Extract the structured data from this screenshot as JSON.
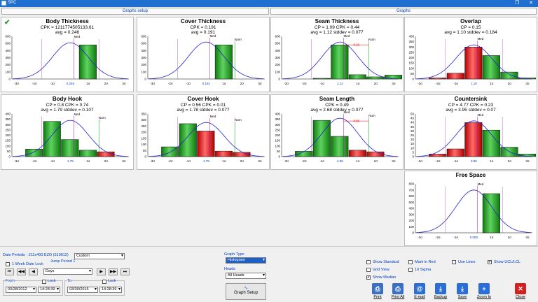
{
  "window": {
    "title": "SPC"
  },
  "tabs": [
    {
      "label": "Graphs setup"
    },
    {
      "label": "Graphs"
    }
  ],
  "charts": [
    {
      "title": "Body Thickness",
      "stats": [
        "CPK = 1211774505133.61",
        "avg = 0.246"
      ],
      "check": true,
      "ymax": 600,
      "yticks": [
        "0",
        "100",
        "200",
        "300",
        "400",
        "500",
        "600"
      ],
      "xticks": [
        "-3σ",
        "-2σ",
        "-1σ",
        "0.246",
        "1σ",
        "2σ",
        "3σ"
      ],
      "bars": [
        {
          "h": 0,
          "c": "none"
        },
        {
          "h": 0,
          "c": "none"
        },
        {
          "h": 0,
          "c": "none"
        },
        {
          "h": 0,
          "c": "none"
        },
        {
          "h": 480,
          "c": "green"
        },
        {
          "h": 0,
          "c": "none"
        },
        {
          "h": 0,
          "c": "none"
        },
        {
          "h": 0,
          "c": "none"
        }
      ],
      "curve_peak": 0,
      "mark": "Med"
    },
    {
      "title": "Cover Thickness",
      "stats": [
        "CPK = 0.191",
        "avg = 0.191"
      ],
      "ymax": 600,
      "yticks": [
        "0",
        "100",
        "200",
        "300",
        "400",
        "500",
        "600"
      ],
      "xticks": [
        "-3σ",
        "-2σ",
        "-1σ",
        "0.191",
        "1σ",
        "2σ",
        "3σ"
      ],
      "bars": [
        {
          "h": 0,
          "c": "none"
        },
        {
          "h": 0,
          "c": "none"
        },
        {
          "h": 0,
          "c": "none"
        },
        {
          "h": 0,
          "c": "none"
        },
        {
          "h": 480,
          "c": "green"
        },
        {
          "h": 0,
          "c": "none"
        },
        {
          "h": 0,
          "c": "none"
        },
        {
          "h": 0,
          "c": "none"
        }
      ],
      "curve_peak": 520,
      "mark": "Med",
      "nom": "Nom"
    },
    {
      "title": "Seam Thickness",
      "stats": [
        "CP = 1.09  CPK = 0.44",
        "avg = 1.12  stddev = 0.077"
      ],
      "ymax": 600,
      "yticks": [
        "0",
        "100",
        "200",
        "300",
        "400",
        "500",
        "600"
      ],
      "xticks": [
        "-3σ",
        "-2σ",
        "-1σ",
        "1.12",
        "1σ",
        "2σ",
        "3σ"
      ],
      "bars": [
        {
          "h": 0,
          "c": "none"
        },
        {
          "h": 0,
          "c": "none"
        },
        {
          "h": 10,
          "c": "green"
        },
        {
          "h": 480,
          "c": "green"
        },
        {
          "h": 60,
          "c": "green"
        },
        {
          "h": 30,
          "c": "green"
        },
        {
          "h": 55,
          "c": "green"
        },
        {
          "h": 0,
          "c": "none"
        }
      ],
      "curve_peak": 520,
      "mark": "Med",
      "nom": "Nom",
      "diff": "0.16"
    },
    {
      "title": "Overlap",
      "stats": [
        "CP = 0.15",
        "avg = 1.10  stddev = 0.184"
      ],
      "ymax": 400,
      "yticks": [
        "0",
        "50",
        "100",
        "150",
        "200",
        "250",
        "300",
        "350",
        "400"
      ],
      "xticks": [
        "-3σ",
        "-2σ",
        "-1σ",
        "1.10",
        "1σ",
        "2σ",
        "3σ"
      ],
      "bars": [
        {
          "h": 0,
          "c": "none"
        },
        {
          "h": 10,
          "c": "red"
        },
        {
          "h": 55,
          "c": "red"
        },
        {
          "h": 300,
          "c": "red"
        },
        {
          "h": 220,
          "c": "green"
        },
        {
          "h": 65,
          "c": "green"
        },
        {
          "h": 10,
          "c": "green"
        },
        {
          "h": 0,
          "c": "none"
        }
      ],
      "curve_peak": 320,
      "mark": "Med"
    },
    {
      "title": "Body Hook",
      "stats": [
        "CP = 0.8  CPK = 0.74",
        "avg = 1.79  stddev = 0.107"
      ],
      "ymax": 400,
      "yticks": [
        "0",
        "50",
        "100",
        "150",
        "200",
        "250",
        "300",
        "350",
        "400"
      ],
      "xticks": [
        "-3σ",
        "-2σ",
        "-1σ",
        "1.79",
        "1σ",
        "2σ",
        "3σ"
      ],
      "bars": [
        {
          "h": 0,
          "c": "none"
        },
        {
          "h": 70,
          "c": "green"
        },
        {
          "h": 330,
          "c": "green"
        },
        {
          "h": 160,
          "c": "green"
        },
        {
          "h": 60,
          "c": "green"
        },
        {
          "h": 45,
          "c": "red"
        },
        {
          "h": 0,
          "c": "none"
        },
        {
          "h": 0,
          "c": "none"
        }
      ],
      "curve_peak": 340,
      "mark": "Med",
      "nom": "Nom"
    },
    {
      "title": "Cover Hook",
      "stats": [
        "CP = 0.56  CPK = 0.01",
        "avg = 1.78  stddev = 0.077"
      ],
      "ymax": 350,
      "yticks": [
        "0",
        "50",
        "100",
        "150",
        "200",
        "250",
        "300",
        "350"
      ],
      "xticks": [
        "-3σ",
        "-2σ",
        "-1σ",
        "1.78",
        "1σ",
        "2σ",
        "3σ"
      ],
      "bars": [
        {
          "h": 0,
          "c": "none"
        },
        {
          "h": 80,
          "c": "green"
        },
        {
          "h": 270,
          "c": "green"
        },
        {
          "h": 210,
          "c": "red"
        },
        {
          "h": 45,
          "c": "red"
        },
        {
          "h": 35,
          "c": "red"
        },
        {
          "h": 0,
          "c": "none"
        },
        {
          "h": 0,
          "c": "none"
        }
      ],
      "curve_peak": 280,
      "mark": "Med",
      "nom": "Nom"
    },
    {
      "title": "Seam Length",
      "stats": [
        "CPK = 0.49",
        "avg = 2.68  stddev = 0.077"
      ],
      "ymax": 400,
      "yticks": [
        "0",
        "50",
        "100",
        "150",
        "200",
        "250",
        "300",
        "350",
        "400"
      ],
      "xticks": [
        "-3σ",
        "-2σ",
        "-1σ",
        "2.68",
        "1σ",
        "2σ",
        "3σ"
      ],
      "bars": [
        {
          "h": 0,
          "c": "none"
        },
        {
          "h": 50,
          "c": "green"
        },
        {
          "h": 340,
          "c": "green"
        },
        {
          "h": 190,
          "c": "green"
        },
        {
          "h": 60,
          "c": "red"
        },
        {
          "h": 45,
          "c": "red"
        },
        {
          "h": 0,
          "c": "none"
        },
        {
          "h": 0,
          "c": "none"
        }
      ],
      "curve_peak": 360,
      "mark": "Med",
      "nom": "Nom",
      "diff": "0.05"
    },
    {
      "title": "Countersink",
      "stats": [
        "CP = 4.77  CPK = 0.23",
        "avg = 3.95  stddev = 0.07"
      ],
      "ymax": 50,
      "yticks": [
        "0",
        "5",
        "10",
        "15",
        "20",
        "25",
        "30",
        "35",
        "40",
        "45",
        "50"
      ],
      "xticks": [
        "-3σ",
        "-2σ",
        "-1σ",
        "3.95",
        "1σ",
        "2σ",
        "3σ"
      ],
      "bars": [
        {
          "h": 0,
          "c": "none"
        },
        {
          "h": 3,
          "c": "red"
        },
        {
          "h": 9,
          "c": "red"
        },
        {
          "h": 40,
          "c": "red"
        },
        {
          "h": 31,
          "c": "green"
        },
        {
          "h": 11,
          "c": "green"
        },
        {
          "h": 3,
          "c": "green"
        },
        {
          "h": 0,
          "c": "none"
        }
      ],
      "curve_peak": 42,
      "mark": "Med"
    },
    {
      "title": "Free Space",
      "stats": [],
      "ymax": 800,
      "yticks": [
        "0",
        "100",
        "200",
        "300",
        "400",
        "500",
        "600",
        "700",
        "800"
      ],
      "xticks": [
        "-3σ",
        "-2σ",
        "-1σ",
        "0.000",
        "1σ",
        "2σ",
        "3σ"
      ],
      "bars": [
        {
          "h": 0,
          "c": "none"
        },
        {
          "h": 0,
          "c": "none"
        },
        {
          "h": 0,
          "c": "none"
        },
        {
          "h": 0,
          "c": "none"
        },
        {
          "h": 640,
          "c": "green"
        },
        {
          "h": 0,
          "c": "none"
        },
        {
          "h": 0,
          "c": "none"
        },
        {
          "h": 0,
          "c": "none"
        }
      ],
      "curve_peak": 700,
      "mark": "Med"
    }
  ],
  "bottom": {
    "date_periods": "Date Periods - 211x400 EZO (519612)",
    "range_select": "Custom",
    "jump_label": "Jump Period 1",
    "week_lock": "1 Week Date Lock",
    "nav_prev_far": "⏮",
    "nav_prev_fast": "◀◀",
    "nav_prev": "◀",
    "nav_next": "▶",
    "nav_next_fast": "▶▶",
    "nav_next_far": "⏭",
    "unit": "Days",
    "from_label": "From",
    "to_label": "To",
    "lock_label": "Lock",
    "from_date": "03/28/2012",
    "from_time": "14:28:39",
    "to_date": "03/30/2016",
    "to_time": "14:28:39",
    "graph_type_label": "Graph Type",
    "graph_type": "Histogram",
    "heads_label": "Heads",
    "heads": "All Heads",
    "graph_setup": "Graph Setup",
    "options": [
      {
        "label": "Show Standard",
        "checked": false
      },
      {
        "label": "Mark in Red",
        "checked": false
      },
      {
        "label": "Use Lines",
        "checked": false
      },
      {
        "label": "Show UCL/LCL",
        "checked": true
      },
      {
        "label": "Grid View",
        "checked": false
      },
      {
        "label": "10 Sigma",
        "checked": false
      },
      {
        "label": "Show Median",
        "checked": true
      }
    ],
    "toolbar": [
      {
        "label": "Print",
        "icon": "printer-icon",
        "glyph": "⎙",
        "color": "#3a6fc4"
      },
      {
        "label": "Print All",
        "icon": "print-all-icon",
        "glyph": "⎙",
        "color": "#3a6fc4"
      },
      {
        "label": "E-mail",
        "icon": "email-icon",
        "glyph": "@",
        "color": "#2b6fd6"
      },
      {
        "label": "Backup",
        "icon": "backup-icon",
        "glyph": "⤓",
        "color": "#2b6fd6"
      },
      {
        "label": "Save",
        "icon": "save-icon",
        "glyph": "⤓",
        "color": "#2b6fd6"
      },
      {
        "label": "Zoom In",
        "icon": "zoom-in-icon",
        "glyph": "+",
        "color": "#2b6fd6"
      },
      {
        "label": "Close",
        "icon": "close-icon",
        "glyph": "✕",
        "color": "#d42020"
      }
    ]
  }
}
